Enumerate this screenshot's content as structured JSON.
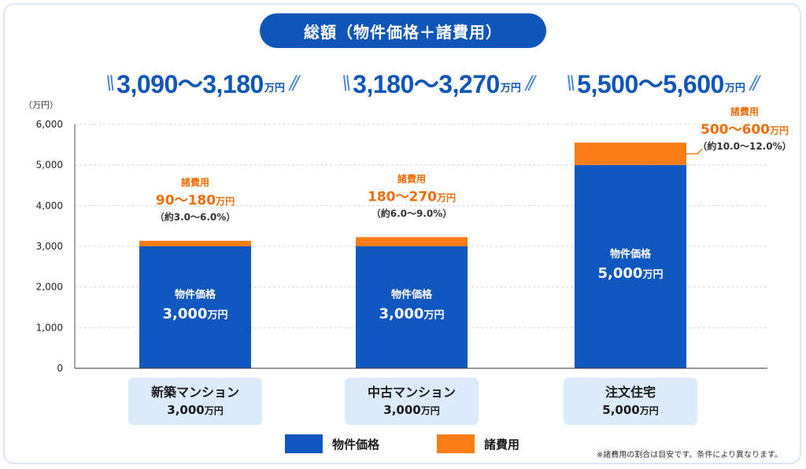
{
  "title": "総額（物件価格＋諸費用）",
  "totals": [
    {
      "range": "3,090～3,180",
      "unit": "万円"
    },
    {
      "range": "3,180～3,270",
      "unit": "万円"
    },
    {
      "range": "5,500～5,600",
      "unit": "万円"
    }
  ],
  "colors": {
    "property": "#1157c0",
    "fees": "#f97c14",
    "accent": "#0f56b8",
    "fee_text": "#f06d0a",
    "category_bg": "#dcebfb"
  },
  "chart_data": {
    "type": "bar",
    "stacked": true,
    "unit_label": "（万円）",
    "ylim": [
      0,
      6000
    ],
    "yticks": [
      "0",
      "1,000",
      "2,000",
      "3,000",
      "4,000",
      "5,000",
      "6,000"
    ],
    "ytick_values": [
      0,
      1000,
      2000,
      3000,
      4000,
      5000,
      6000
    ],
    "grid": true,
    "categories": [
      "新築マンション",
      "中古マンション",
      "注文住宅"
    ],
    "series": [
      {
        "name": "物件価格",
        "values": [
          3000,
          3000,
          5000
        ]
      },
      {
        "name": "諸費用",
        "values": [
          135,
          225,
          550
        ]
      }
    ],
    "bar_labels": [
      {
        "title": "物件価格",
        "amount": "3,000",
        "unit": "万円"
      },
      {
        "title": "物件価格",
        "amount": "3,000",
        "unit": "万円"
      },
      {
        "title": "物件価格",
        "amount": "5,000",
        "unit": "万円"
      }
    ],
    "fee_labels": [
      {
        "title": "諸費用",
        "amount": "90～180",
        "unit": "万円",
        "ratio": "（約3.0～6.0%）"
      },
      {
        "title": "諸費用",
        "amount": "180～270",
        "unit": "万円",
        "ratio": "（約6.0～9.0%）"
      },
      {
        "title": "諸費用",
        "amount": "500～600",
        "unit": "万円",
        "ratio": "（約10.0～12.0%）"
      }
    ]
  },
  "category_boxes": [
    {
      "name": "新築マンション",
      "amount": "3,000",
      "unit": "万円"
    },
    {
      "name": "中古マンション",
      "amount": "3,000",
      "unit": "万円"
    },
    {
      "name": "注文住宅",
      "amount": "5,000",
      "unit": "万円"
    }
  ],
  "legend": [
    {
      "label": "物件価格"
    },
    {
      "label": "諸費用"
    }
  ],
  "note": "※諸費用の割合は目安です。条件により異なります。"
}
